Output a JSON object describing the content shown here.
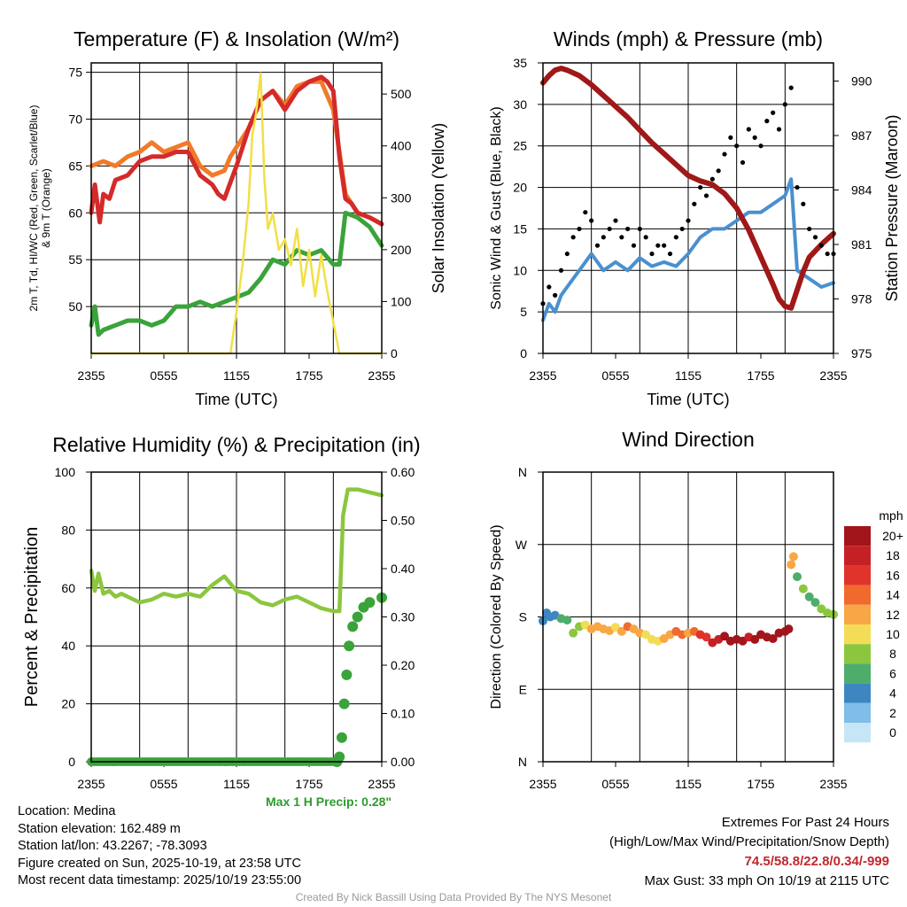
{
  "chart_data": [
    {
      "type": "line",
      "id": "temp",
      "title": "Temperature (F) & Insolation (W/m²)",
      "xlabel": "Time (UTC)",
      "ylabel": "2m T, Td, HI/WC (Red, Green, Scarlet/Blue) & 9m T (Orange)",
      "ylabel_lines": [
        "2m T, Td, HI/WC (Red, Green, Scarlet/Blue)",
        "& 9m T (Orange)"
      ],
      "y2label": "Solar Insolation (Yellow)",
      "xticks": [
        "2355",
        "0555",
        "1155",
        "1755",
        "2355"
      ],
      "yticks": [
        50,
        55,
        60,
        65,
        70,
        75
      ],
      "y2ticks": [
        0,
        100,
        200,
        300,
        400,
        500
      ],
      "ylim": [
        45,
        76
      ],
      "y2lim": [
        0,
        560
      ],
      "series": [
        {
          "name": "9m T",
          "color": "#f07a2a",
          "axis": "left",
          "x": [
            0,
            1,
            2,
            3,
            4,
            5,
            6,
            7,
            8,
            9,
            10,
            11,
            11.5,
            12,
            13,
            14,
            15,
            16,
            17,
            18,
            19,
            20,
            21,
            21.5,
            22,
            23,
            24
          ],
          "values": [
            65,
            65.5,
            65,
            66,
            66.5,
            67.5,
            66.5,
            67,
            67.5,
            65,
            64,
            64.5,
            66,
            67,
            69,
            72,
            73,
            71.5,
            73.5,
            74,
            74,
            71,
            62,
            61,
            60,
            59.5,
            58.8
          ]
        },
        {
          "name": "2m T",
          "color": "#d42a2a",
          "axis": "left",
          "x": [
            0,
            0.3,
            0.7,
            1,
            1.5,
            2,
            3,
            4,
            5,
            6,
            7,
            8,
            9,
            10,
            10.5,
            11,
            12,
            13,
            14,
            15,
            16,
            17,
            18,
            19,
            19.5,
            20,
            20.5,
            21,
            21.5,
            22,
            23,
            24
          ],
          "values": [
            60,
            63,
            59,
            62,
            61.5,
            63.5,
            64,
            65.5,
            66,
            66,
            66.5,
            66.5,
            64,
            63,
            62,
            61.5,
            65,
            69,
            72,
            73,
            71,
            73,
            74,
            74.5,
            74,
            73,
            66,
            61.5,
            61,
            60,
            59.5,
            58.8
          ]
        },
        {
          "name": "Td",
          "color": "#3aa33a",
          "axis": "left",
          "x": [
            0,
            0.3,
            0.6,
            1,
            2,
            3,
            4,
            5,
            6,
            7,
            8,
            9,
            10,
            11,
            12,
            13,
            14,
            15,
            16,
            17,
            18,
            19,
            20,
            20.5,
            21,
            22,
            23,
            24
          ],
          "values": [
            48,
            50,
            47,
            47.5,
            48,
            48.5,
            48.5,
            48,
            48.5,
            50,
            50,
            50.5,
            50,
            50.5,
            51,
            51.5,
            53,
            55,
            54.5,
            56,
            55.5,
            56,
            54.5,
            54.5,
            60,
            59.5,
            58.5,
            56.5
          ]
        },
        {
          "name": "Solar Insolation",
          "color": "#f2df45",
          "axis": "right",
          "x": [
            0,
            11.5,
            12,
            12.5,
            13,
            13.3,
            13.6,
            14,
            14.3,
            14.6,
            15,
            15.5,
            16,
            16.5,
            17,
            17.5,
            18,
            18.5,
            19,
            19.5,
            20,
            20.5,
            21,
            24
          ],
          "values": [
            0,
            0,
            80,
            170,
            290,
            420,
            460,
            540,
            340,
            240,
            270,
            200,
            220,
            170,
            240,
            130,
            200,
            110,
            190,
            120,
            60,
            0,
            0,
            0
          ]
        }
      ]
    },
    {
      "type": "scatter",
      "id": "wind",
      "title": "Winds (mph) & Pressure (mb)",
      "xlabel": "Time (UTC)",
      "ylabel": "Sonic Wind & Gust (Blue, Black)",
      "y2label": "Station Pressure (Maroon)",
      "xticks": [
        "2355",
        "0555",
        "1155",
        "1755",
        "2355"
      ],
      "yticks": [
        0,
        5,
        10,
        15,
        20,
        25,
        30,
        35
      ],
      "y2ticks": [
        975,
        978,
        981,
        984,
        987,
        990
      ],
      "ylim": [
        0,
        35
      ],
      "y2lim": [
        975,
        991
      ],
      "series": [
        {
          "name": "Sonic Wind",
          "color": "#4a90d0",
          "axis": "left",
          "x": [
            0,
            0.5,
            1,
            1.5,
            2,
            3,
            4,
            5,
            6,
            7,
            8,
            9,
            10,
            11,
            12,
            13,
            14,
            15,
            16,
            17,
            18,
            19,
            20,
            20.5,
            21,
            22,
            23,
            24
          ],
          "values": [
            4,
            6,
            5,
            7,
            8,
            10,
            12,
            10,
            11,
            10,
            11.5,
            10.5,
            11,
            10.5,
            12,
            14,
            15,
            15,
            16,
            17,
            17,
            18,
            19,
            21,
            10,
            9,
            8,
            8.5
          ]
        },
        {
          "name": "Gust",
          "color": "#000000",
          "axis": "left",
          "x": [
            0,
            0.5,
            1,
            1.5,
            2,
            2.5,
            3,
            3.5,
            4,
            4.5,
            5,
            5.5,
            6,
            6.5,
            7,
            7.5,
            8,
            8.5,
            9,
            9.5,
            10,
            10.5,
            11,
            11.5,
            12,
            12.5,
            13,
            13.5,
            14,
            14.5,
            15,
            15.5,
            16,
            16.5,
            17,
            17.5,
            18,
            18.5,
            19,
            19.5,
            20,
            20.5,
            21,
            21.5,
            22,
            22.5,
            23,
            23.5,
            24
          ],
          "values": [
            6,
            8,
            7,
            10,
            12,
            14,
            15,
            17,
            16,
            13,
            14,
            15,
            16,
            14,
            15,
            13,
            15,
            14,
            12,
            13,
            13,
            12,
            14,
            15,
            16,
            18,
            20,
            19,
            21,
            22,
            24,
            26,
            25,
            23,
            27,
            26,
            25,
            28,
            29,
            27,
            30,
            32,
            20,
            18,
            15,
            14,
            13,
            12,
            12
          ]
        },
        {
          "name": "Station Pressure",
          "color": "#a01818",
          "axis": "right",
          "x": [
            0,
            0.5,
            1,
            1.5,
            2,
            3,
            4,
            5,
            6,
            7,
            8,
            9,
            10,
            11,
            12,
            13,
            14,
            15,
            16,
            17,
            18,
            19,
            19.5,
            20,
            20.5,
            21,
            21.5,
            22,
            23,
            24
          ],
          "values": [
            989.9,
            990.3,
            990.6,
            990.7,
            990.6,
            990.3,
            989.8,
            989.2,
            988.6,
            988,
            987.3,
            986.6,
            986,
            985.4,
            984.8,
            984.5,
            984.3,
            983.8,
            983,
            981.8,
            980.3,
            978.8,
            978,
            977.6,
            977.5,
            978.5,
            979.5,
            980.3,
            981,
            981.6
          ]
        }
      ]
    },
    {
      "type": "line",
      "id": "rh",
      "title": "Relative Humidity (%) & Precipitation (in)",
      "ylabel": "Percent & Precipitation",
      "xticks": [
        "2355",
        "0555",
        "1155",
        "1755",
        "2355"
      ],
      "yticks": [
        0,
        20,
        40,
        60,
        80,
        100
      ],
      "y2ticks": [
        "0.00",
        "0.10",
        "0.20",
        "0.30",
        "0.40",
        "0.50",
        "0.60"
      ],
      "ylim": [
        0,
        100
      ],
      "y2lim": [
        0,
        0.6
      ],
      "max_precip_label": "Max 1 H Precip: 0.28\"",
      "series": [
        {
          "name": "Relative Humidity",
          "color": "#8cc63f",
          "axis": "left",
          "x": [
            0,
            0.3,
            0.6,
            1,
            1.5,
            2,
            2.5,
            3,
            4,
            5,
            6,
            7,
            8,
            9,
            10,
            11,
            12,
            13,
            14,
            15,
            16,
            17,
            18,
            19,
            20,
            20.5,
            20.8,
            21.2,
            22,
            23,
            24
          ],
          "values": [
            66,
            59,
            65,
            58,
            59,
            57,
            58,
            57,
            55,
            56,
            58,
            57,
            58,
            57,
            61,
            64,
            59,
            58,
            55,
            54,
            56,
            57,
            55,
            53,
            52,
            52,
            85,
            94,
            94,
            93,
            92
          ]
        },
        {
          "name": "Precipitation",
          "color": "#3aa33a",
          "axis": "right",
          "x": [
            0,
            20,
            20.3,
            20.5,
            20.7,
            20.9,
            21.1,
            21.3,
            21.6,
            22,
            22.5,
            23,
            24
          ],
          "values": [
            0,
            0,
            0,
            0.01,
            0.05,
            0.12,
            0.18,
            0.24,
            0.28,
            0.3,
            0.32,
            0.33,
            0.34
          ]
        }
      ]
    },
    {
      "type": "scatter",
      "id": "wdir",
      "title": "Wind Direction",
      "ylabel": "Direction (Colored By Speed)",
      "xticks": [
        "2355",
        "0555",
        "1155",
        "1755",
        "2355"
      ],
      "yticks": [
        "N",
        "E",
        "S",
        "W",
        "N"
      ],
      "ylim": [
        0,
        360
      ],
      "legend_title": "mph",
      "legend_labels": [
        "20+",
        "18",
        "16",
        "14",
        "12",
        "10",
        "8",
        "6",
        "4",
        "2",
        "0"
      ],
      "legend_colors": [
        "#a1151b",
        "#c42026",
        "#e0332b",
        "#f06a2e",
        "#f8a744",
        "#f3dd57",
        "#8cc63f",
        "#4ead6b",
        "#3d86c2",
        "#80bde8",
        "#c6e6f8"
      ],
      "x": [
        0,
        0.3,
        0.6,
        1,
        1.5,
        2,
        2.5,
        3,
        3.5,
        4,
        4.5,
        5,
        5.5,
        6,
        6.5,
        7,
        7.5,
        8,
        8.5,
        9,
        9.5,
        10,
        10.5,
        11,
        11.5,
        12,
        12.5,
        13,
        13.5,
        14,
        14.5,
        15,
        15.5,
        16,
        16.5,
        17,
        17.5,
        18,
        18.5,
        19,
        19.5,
        20,
        20.3,
        20.5,
        20.7,
        21,
        21.5,
        22,
        22.5,
        23,
        23.5,
        24
      ],
      "values": [
        175,
        185,
        180,
        182,
        178,
        176,
        160,
        168,
        170,
        165,
        168,
        165,
        163,
        167,
        162,
        168,
        165,
        160,
        158,
        152,
        150,
        153,
        158,
        162,
        158,
        160,
        162,
        158,
        155,
        148,
        152,
        156,
        150,
        152,
        150,
        155,
        152,
        158,
        155,
        153,
        160,
        162,
        165,
        245,
        255,
        230,
        215,
        205,
        198,
        190,
        185,
        183
      ],
      "speeds": [
        3,
        4,
        3,
        4,
        5,
        6,
        7,
        8,
        10,
        11,
        12,
        12,
        11,
        10,
        12,
        13,
        12,
        11,
        10,
        9,
        10,
        11,
        12,
        13,
        14,
        12,
        13,
        15,
        16,
        17,
        18,
        19,
        20,
        20,
        19,
        18,
        20,
        21,
        20,
        21,
        20,
        19,
        20,
        12,
        11,
        6,
        8,
        5,
        6,
        7,
        8,
        7
      ]
    }
  ],
  "info": {
    "location": "Location: Medina",
    "elevation": "Station elevation: 162.489 m",
    "latlon": "Station lat/lon: 43.2267; -78.3093",
    "created": "Figure created on Sun, 2025-10-19, at 23:58 UTC",
    "recent": "Most recent data timestamp: 2025/10/19 23:55:00"
  },
  "extremes": {
    "title": "Extremes For Past 24 Hours",
    "subtitle": "(High/Low/Max Wind/Precipitation/Snow Depth)",
    "values": "74.5/58.8/22.8/0.34/-999",
    "gust": "Max Gust: 33 mph On 10/19 at 2115 UTC"
  },
  "credit": "Created By Nick Bassill Using Data Provided By The NYS Mesonet"
}
